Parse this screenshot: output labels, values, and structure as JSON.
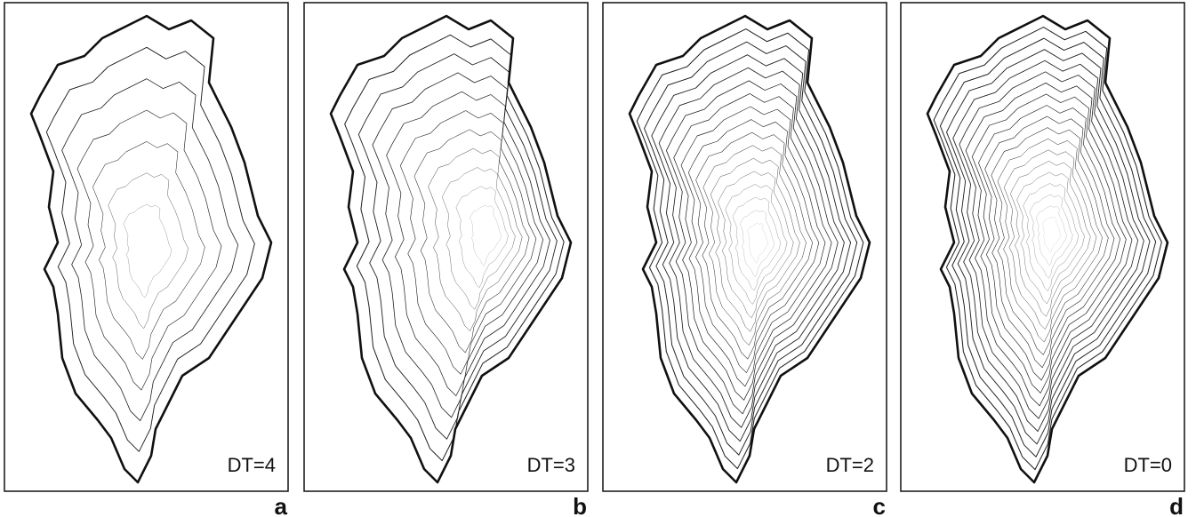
{
  "panels": [
    {
      "label": "DT=4",
      "letter": "a"
    },
    {
      "label": "DT=3",
      "letter": "b"
    },
    {
      "label": "DT=2",
      "letter": "c"
    },
    {
      "label": "DT=0",
      "letter": "d"
    }
  ]
}
